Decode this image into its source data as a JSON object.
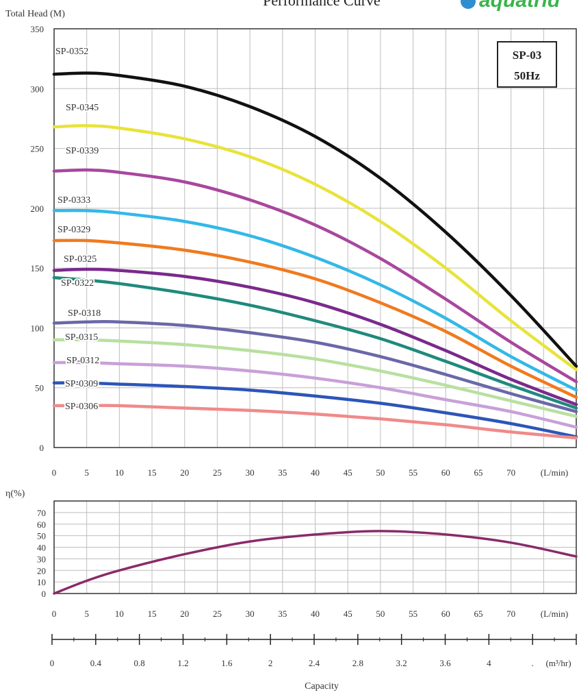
{
  "title": "Performance Curve",
  "brand": "aquatrid",
  "chart_data": [
    {
      "type": "line",
      "name": "head",
      "ylabel": "Total Head (M)",
      "x_unit": "(L/min)",
      "xlim": [
        0,
        80
      ],
      "ylim": [
        0,
        350
      ],
      "x_ticks": [
        0,
        5,
        10,
        15,
        20,
        25,
        30,
        35,
        40,
        45,
        50,
        55,
        60,
        65,
        70
      ],
      "y_ticks": [
        0,
        50,
        100,
        150,
        200,
        250,
        300,
        350
      ],
      "grid": true,
      "model_box": [
        "SP-03",
        "50Hz"
      ],
      "series": [
        {
          "name": "SP-0352",
          "color": "#111111",
          "x": [
            0,
            5,
            10,
            20,
            30,
            40,
            50,
            60,
            70,
            80
          ],
          "y": [
            312,
            313,
            311,
            302,
            285,
            260,
            225,
            180,
            127,
            68
          ]
        },
        {
          "name": "SP-0345",
          "color": "#e8e33a",
          "x": [
            0,
            5,
            10,
            20,
            30,
            40,
            50,
            60,
            70,
            80
          ],
          "y": [
            268,
            269,
            267,
            258,
            243,
            220,
            189,
            150,
            106,
            65
          ]
        },
        {
          "name": "SP-0339",
          "color": "#a8479e",
          "x": [
            0,
            5,
            10,
            20,
            30,
            40,
            50,
            60,
            70,
            80
          ],
          "y": [
            231,
            232,
            230,
            222,
            207,
            186,
            158,
            124,
            88,
            55
          ]
        },
        {
          "name": "SP-0333",
          "color": "#33b8e8",
          "x": [
            0,
            5,
            10,
            20,
            30,
            40,
            50,
            60,
            70,
            80
          ],
          "y": [
            198,
            198,
            196,
            189,
            177,
            159,
            136,
            108,
            76,
            48
          ]
        },
        {
          "name": "SP-0329",
          "color": "#f07a1e",
          "x": [
            0,
            5,
            10,
            20,
            30,
            40,
            50,
            60,
            70,
            80
          ],
          "y": [
            173,
            173,
            171,
            165,
            155,
            141,
            121,
            97,
            68,
            42
          ]
        },
        {
          "name": "SP-0325",
          "color": "#7a2a8c",
          "x": [
            0,
            5,
            10,
            20,
            30,
            40,
            50,
            60,
            70,
            80
          ],
          "y": [
            148,
            149,
            148,
            143,
            134,
            121,
            103,
            81,
            57,
            36
          ]
        },
        {
          "name": "SP-0322",
          "color": "#1f8a7c",
          "x": [
            0,
            5,
            10,
            20,
            30,
            40,
            50,
            60,
            70,
            80
          ],
          "y": [
            142,
            140,
            137,
            129,
            119,
            106,
            91,
            72,
            52,
            33
          ]
        },
        {
          "name": "SP-0318",
          "color": "#6a68a8",
          "x": [
            0,
            5,
            10,
            20,
            30,
            40,
            50,
            60,
            70,
            80
          ],
          "y": [
            104,
            105,
            105,
            102,
            96,
            88,
            76,
            61,
            45,
            30
          ]
        },
        {
          "name": "SP-0315",
          "color": "#b8e0a0",
          "x": [
            0,
            5,
            10,
            20,
            30,
            40,
            50,
            60,
            70,
            80
          ],
          "y": [
            90,
            90,
            89,
            86,
            81,
            74,
            64,
            52,
            39,
            26
          ]
        },
        {
          "name": "SP-0312",
          "color": "#c8a0d8",
          "x": [
            0,
            5,
            10,
            20,
            30,
            40,
            50,
            60,
            70,
            80
          ],
          "y": [
            71,
            71,
            70,
            68,
            64,
            58,
            50,
            40,
            30,
            17
          ]
        },
        {
          "name": "SP-0309",
          "color": "#2d55b8",
          "x": [
            0,
            5,
            10,
            20,
            30,
            40,
            50,
            60,
            70,
            80
          ],
          "y": [
            54,
            54,
            53,
            51,
            48,
            43,
            37,
            29,
            20,
            9
          ]
        },
        {
          "name": "SP-0306",
          "color": "#f08a8a",
          "x": [
            0,
            5,
            10,
            20,
            30,
            40,
            50,
            60,
            70,
            80
          ],
          "y": [
            35,
            35,
            35,
            33,
            31,
            28,
            24,
            19,
            13,
            8
          ]
        }
      ]
    },
    {
      "type": "line",
      "name": "efficiency",
      "ylabel": "η(%)",
      "x_unit": "(L/min)",
      "xlim": [
        0,
        80
      ],
      "ylim": [
        0,
        80
      ],
      "x_ticks": [
        0,
        5,
        10,
        15,
        20,
        25,
        30,
        35,
        40,
        45,
        50,
        55,
        60,
        65,
        70
      ],
      "y_ticks": [
        0,
        10,
        20,
        30,
        40,
        50,
        60,
        70
      ],
      "grid": true,
      "series": [
        {
          "name": "",
          "color": "#8a2a6a",
          "x": [
            0,
            5,
            10,
            20,
            30,
            40,
            50,
            60,
            70,
            80
          ],
          "y": [
            0,
            11,
            20,
            34,
            45,
            51,
            54,
            51,
            44,
            32
          ]
        }
      ]
    }
  ],
  "secondary_axis": {
    "ticks": [
      "0",
      "0.4",
      "0.8",
      "1.2",
      "1.6",
      "2",
      "2.4",
      "2.8",
      "3.2",
      "3.6",
      "4",
      "."
    ],
    "unit": "(m³/hr)"
  },
  "xlabel": "Capacity"
}
